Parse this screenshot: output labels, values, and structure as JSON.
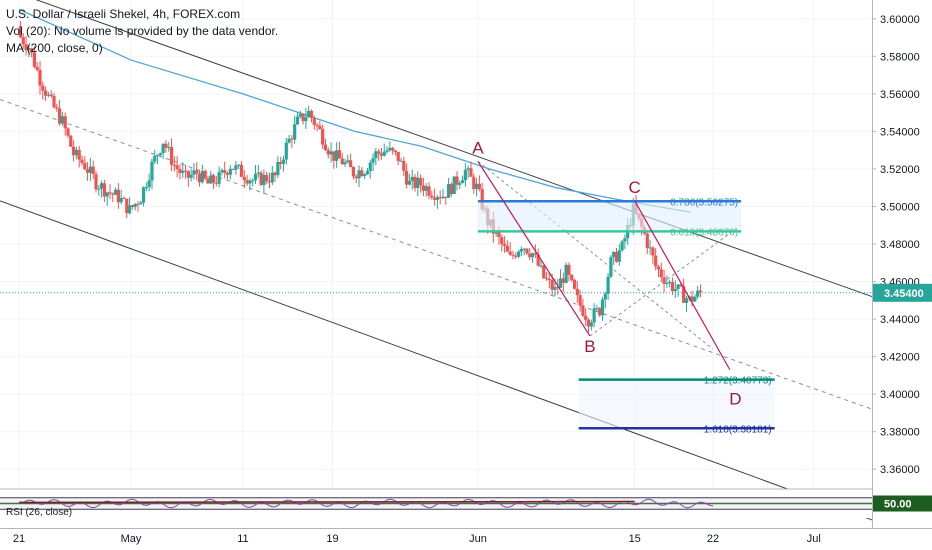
{
  "legend": {
    "line1": "U.S. Dollar / Israeli Shekel, 4h, FOREX.com",
    "line2": "Vol (20): No volume is provided by the data vendor.",
    "line3": "MA (200, close, 0)"
  },
  "colors": {
    "up": "#26a69a",
    "down": "#ef5350",
    "ma": "#4fa6d6",
    "channel": "#3a3f48",
    "wave": "#c2185b",
    "fib_blue": "#2b7bd6",
    "fib_green": "#3cc69a",
    "fib_teal": "#00897b",
    "fib_navy": "#2132a6",
    "rsi": "#8e44ad"
  },
  "chart_data": {
    "type": "candlestick",
    "symbol": "U.S. Dollar / Israeli Shekel",
    "timeframe": "4h",
    "ylim": [
      3.35,
      3.61
    ],
    "y_ticks": [
      "3.60000",
      "3.58000",
      "3.56000",
      "3.54000",
      "3.52000",
      "3.50000",
      "3.48000",
      "3.46000",
      "3.44000",
      "3.42000",
      "3.40000",
      "3.38000",
      "3.36000"
    ],
    "x_ticks": [
      {
        "label": "21",
        "t": 0
      },
      {
        "label": "May",
        "t": 10
      },
      {
        "label": "11",
        "t": 20
      },
      {
        "label": "19",
        "t": 28
      },
      {
        "label": "Jun",
        "t": 41
      },
      {
        "label": "15",
        "t": 55
      },
      {
        "label": "22",
        "t": 62
      },
      {
        "label": "Jul",
        "t": 71
      }
    ],
    "t_range": [
      -1.7,
      76.2
    ],
    "close_series": [
      [
        0,
        3.592
      ],
      [
        1,
        3.585
      ],
      [
        2,
        3.568
      ],
      [
        3,
        3.555
      ],
      [
        4,
        3.545
      ],
      [
        5,
        3.528
      ],
      [
        6,
        3.522
      ],
      [
        7,
        3.513
      ],
      [
        8,
        3.508
      ],
      [
        9,
        3.505
      ],
      [
        10,
        3.498
      ],
      [
        11,
        3.505
      ],
      [
        12,
        3.522
      ],
      [
        13,
        3.535
      ],
      [
        14,
        3.522
      ],
      [
        15,
        3.515
      ],
      [
        16,
        3.518
      ],
      [
        17,
        3.512
      ],
      [
        18,
        3.515
      ],
      [
        19,
        3.522
      ],
      [
        20,
        3.518
      ],
      [
        21,
        3.514
      ],
      [
        22,
        3.515
      ],
      [
        23,
        3.516
      ],
      [
        24,
        3.532
      ],
      [
        25,
        3.545
      ],
      [
        26,
        3.55
      ],
      [
        27,
        3.54
      ],
      [
        28,
        3.528
      ],
      [
        29,
        3.524
      ],
      [
        30,
        3.518
      ],
      [
        31,
        3.52
      ],
      [
        32,
        3.528
      ],
      [
        33,
        3.53
      ],
      [
        34,
        3.526
      ],
      [
        35,
        3.512
      ],
      [
        36,
        3.512
      ],
      [
        37,
        3.508
      ],
      [
        38,
        3.506
      ],
      [
        39,
        3.512
      ],
      [
        40,
        3.519
      ],
      [
        41,
        3.51
      ],
      [
        42,
        3.492
      ],
      [
        43,
        3.482
      ],
      [
        44,
        3.472
      ],
      [
        45,
        3.48
      ],
      [
        46,
        3.475
      ],
      [
        47,
        3.462
      ],
      [
        48,
        3.455
      ],
      [
        49,
        3.465
      ],
      [
        50,
        3.45
      ],
      [
        51,
        3.44
      ],
      [
        52,
        3.445
      ],
      [
        53,
        3.47
      ],
      [
        54,
        3.478
      ],
      [
        55,
        3.498
      ],
      [
        56,
        3.485
      ],
      [
        57,
        3.468
      ],
      [
        58,
        3.46
      ],
      [
        59,
        3.455
      ],
      [
        60,
        3.45
      ],
      [
        61,
        3.454
      ]
    ],
    "last_price": "3.45400",
    "ma200": [
      [
        0,
        3.605
      ],
      [
        10,
        3.578
      ],
      [
        20,
        3.56
      ],
      [
        30,
        3.54
      ],
      [
        36,
        3.532
      ],
      [
        42,
        3.52
      ],
      [
        48,
        3.51
      ],
      [
        55,
        3.502
      ],
      [
        60,
        3.497
      ]
    ],
    "channel_upper": [
      [
        -1.7,
        3.617
      ],
      [
        76.2,
        3.452
      ]
    ],
    "channel_middle": [
      [
        -1.7,
        3.557
      ],
      [
        76.2,
        3.392
      ]
    ],
    "channel_lower": [
      [
        -1.7,
        3.503
      ],
      [
        76.2,
        3.333
      ]
    ],
    "wave_points": [
      {
        "label": "A",
        "t": 41,
        "y": 3.524
      },
      {
        "label": "B",
        "t": 51,
        "y": 3.431
      },
      {
        "label": "C",
        "t": 55,
        "y": 3.503
      },
      {
        "label": "D",
        "t": 64,
        "y": 3.403
      }
    ],
    "wave_lines": [
      [
        [
          41,
          3.524
        ],
        [
          51,
          3.431
        ]
      ],
      [
        [
          55,
          3.503
        ],
        [
          63.5,
          3.413
        ]
      ]
    ],
    "fib_levels": [
      {
        "label": "0.786(3.50275)",
        "value": 3.50275,
        "t0": 41,
        "t1": 64.5,
        "color": "fib_blue"
      },
      {
        "label": "0.618(3.48670)",
        "value": 3.4867,
        "t0": 41,
        "t1": 64.5,
        "color": "fib_green"
      },
      {
        "label": "1.272(3.40773)",
        "value": 3.40773,
        "t0": 50,
        "t1": 67.5,
        "color": "fib_teal"
      },
      {
        "label": "1.618(3.38181)",
        "value": 3.38181,
        "t0": 50,
        "t1": 67.5,
        "color": "fib_navy"
      }
    ],
    "rsi": {
      "label": "RSI (26, close)",
      "value": "50.00",
      "ylim": [
        0,
        100
      ],
      "levels": [
        30,
        50,
        70
      ]
    }
  }
}
